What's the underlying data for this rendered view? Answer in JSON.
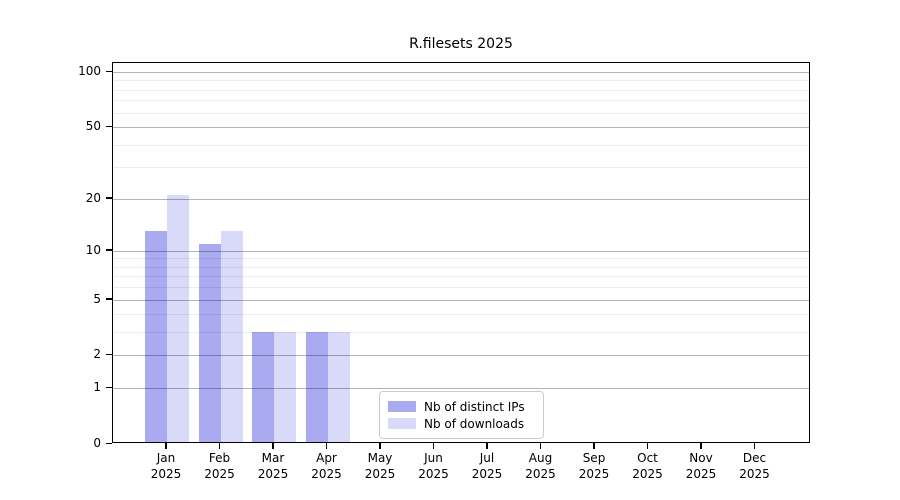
{
  "chart_data": {
    "type": "bar",
    "title": "R.filesets 2025",
    "categories": [
      "Jan",
      "Feb",
      "Mar",
      "Apr",
      "May",
      "Jun",
      "Jul",
      "Aug",
      "Sep",
      "Oct",
      "Nov",
      "Dec"
    ],
    "year_label": "2025",
    "series": [
      {
        "name": "Nb of distinct IPs",
        "color": "#aaaaf0",
        "values": [
          13,
          11,
          3,
          3,
          0,
          0,
          0,
          0,
          0,
          0,
          0,
          0
        ]
      },
      {
        "name": "Nb of downloads",
        "color": "#d9d9f9",
        "values": [
          21,
          13,
          3,
          3,
          0,
          0,
          0,
          0,
          0,
          0,
          0,
          0
        ]
      }
    ],
    "yscale": "log1p",
    "ylim": [
      0,
      112
    ],
    "yticks_major": [
      0,
      1,
      2,
      5,
      10,
      20,
      50,
      100
    ],
    "yticks_minor": [
      3,
      4,
      6,
      7,
      8,
      9,
      30,
      40,
      60,
      70,
      80,
      90
    ],
    "xlabel": "",
    "ylabel": "",
    "grid": true,
    "legend_position": "lower center"
  }
}
